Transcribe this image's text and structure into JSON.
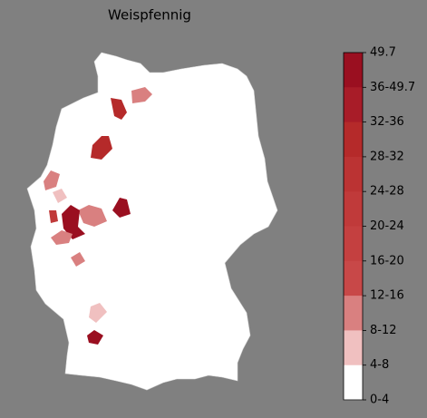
{
  "title": "Weispfennig",
  "colorbar": {
    "labels": [
      "49.7",
      "36-49.7",
      "32-36",
      "28-32",
      "24-28",
      "20-24",
      "16-20",
      "12-16",
      "8-12",
      "4-8",
      "0-4"
    ],
    "colors": [
      "#9a0f20",
      "#a81c28",
      "#b52a2a",
      "#bb3333",
      "#c03a3a",
      "#c44040",
      "#c84848",
      "#d98080",
      "#f0c0c0",
      "#ffffff"
    ]
  }
}
